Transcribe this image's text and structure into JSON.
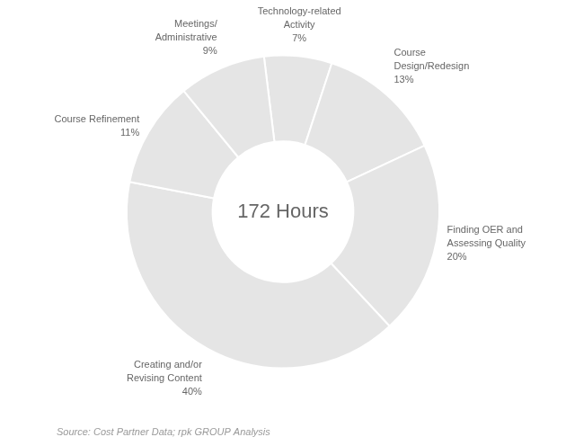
{
  "chart_data": {
    "type": "doughnut",
    "categories": [
      "Technology-related\nActivity",
      "Course\nDesign/Redesign",
      "Finding OER and\nAssessing Quality",
      "Creating and/or\nRevising Content",
      "Course Refinement",
      "Meetings/\nAdministrative"
    ],
    "values": [
      7,
      13,
      20,
      40,
      11,
      9
    ],
    "value_labels": [
      "7%",
      "13%",
      "20%",
      "40%",
      "11%",
      "9%"
    ],
    "data_labels": true,
    "annotations": [
      "172 Hours",
      "Source: Cost Partner Data; rpk GROUP Analysis"
    ]
  }
}
